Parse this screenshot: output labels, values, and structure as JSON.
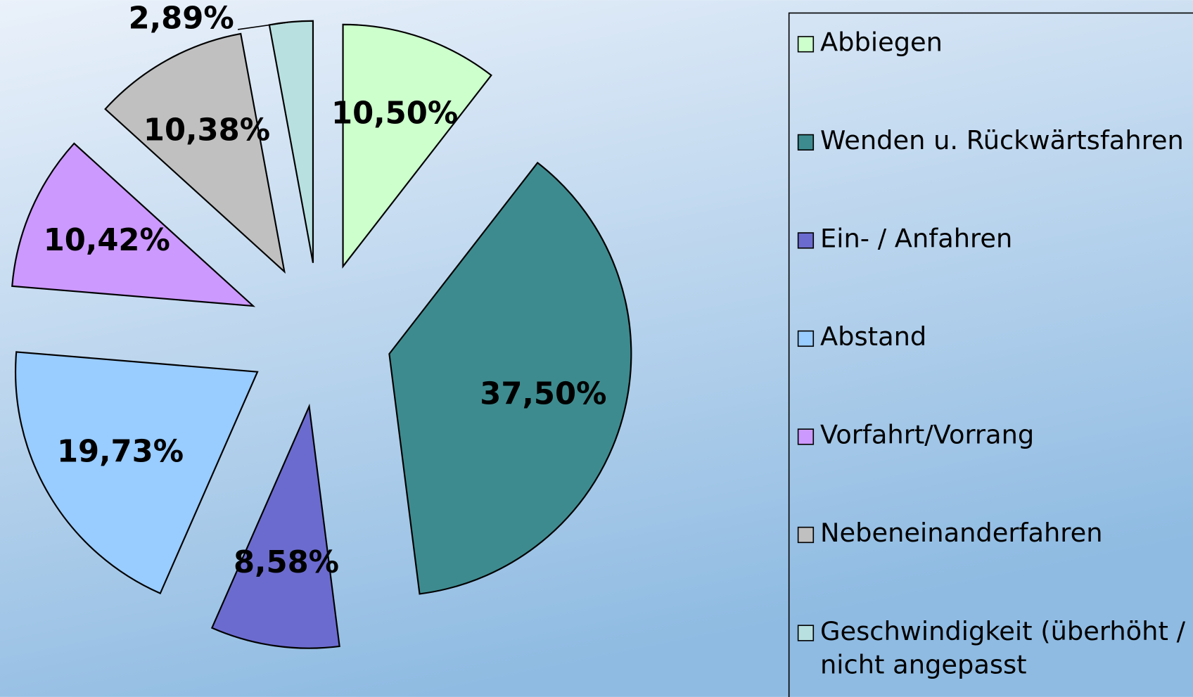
{
  "chart_data": {
    "type": "pie",
    "categories": [
      "Abbiegen",
      "Wenden u. Rückwärtsfahren",
      "Ein- / Anfahren",
      "Abstand",
      "Vorfahrt/Vorrang",
      "Nebeneinanderfahren",
      "Geschwindigkeit (überhöht / nicht angepasst"
    ],
    "values": [
      10.5,
      37.5,
      8.58,
      19.73,
      10.42,
      10.38,
      2.89
    ],
    "value_labels": [
      "10,50%",
      "37,50%",
      "8,58%",
      "19,73%",
      "10,42%",
      "10,38%",
      "2,89%"
    ],
    "colors": [
      "#ccffcc",
      "#3d8b8f",
      "#6b6bcf",
      "#99ccff",
      "#cc99ff",
      "#c0c0c0",
      "#b8e0e0"
    ],
    "legend": "right"
  }
}
